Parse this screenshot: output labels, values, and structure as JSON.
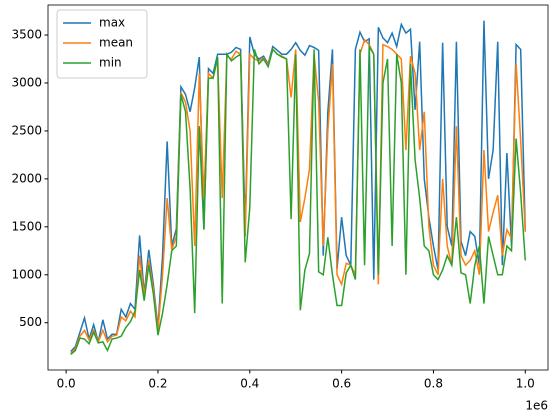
{
  "chart_data": {
    "type": "line",
    "x": [
      10000,
      20000,
      30000,
      40000,
      50000,
      60000,
      70000,
      80000,
      90000,
      100000,
      110000,
      120000,
      130000,
      140000,
      150000,
      160000,
      170000,
      180000,
      190000,
      200000,
      210000,
      220000,
      230000,
      240000,
      250000,
      260000,
      270000,
      280000,
      290000,
      300000,
      310000,
      320000,
      330000,
      340000,
      350000,
      360000,
      370000,
      380000,
      390000,
      400000,
      410000,
      420000,
      430000,
      440000,
      450000,
      460000,
      470000,
      480000,
      490000,
      500000,
      510000,
      520000,
      530000,
      540000,
      550000,
      560000,
      570000,
      580000,
      590000,
      600000,
      610000,
      620000,
      630000,
      640000,
      650000,
      660000,
      670000,
      680000,
      690000,
      700000,
      710000,
      720000,
      730000,
      740000,
      750000,
      760000,
      770000,
      780000,
      790000,
      800000,
      810000,
      820000,
      830000,
      840000,
      850000,
      860000,
      870000,
      880000,
      890000,
      900000,
      910000,
      920000,
      930000,
      940000,
      950000,
      960000,
      970000,
      980000,
      990000,
      1000000
    ],
    "series": [
      {
        "name": "max",
        "color": "#1f77b4",
        "values": [
          200,
          250,
          400,
          550,
          330,
          480,
          300,
          530,
          330,
          380,
          380,
          640,
          560,
          700,
          640,
          1410,
          800,
          1260,
          900,
          450,
          1200,
          2390,
          1300,
          1480,
          2960,
          2880,
          2700,
          2950,
          3270,
          1480,
          3150,
          3100,
          3300,
          3300,
          3300,
          3320,
          3370,
          3350,
          1500,
          3480,
          3300,
          3250,
          3280,
          3200,
          3380,
          3340,
          3300,
          3300,
          3350,
          3420,
          3340,
          3290,
          3390,
          3370,
          3340,
          1200,
          2700,
          3350,
          1060,
          1600,
          1200,
          1100,
          3350,
          3530,
          3430,
          3460,
          950,
          3580,
          3470,
          3420,
          3520,
          3380,
          3610,
          3520,
          3560,
          2720,
          3430,
          2000,
          1600,
          1300,
          1050,
          3420,
          1500,
          1300,
          3430,
          1350,
          1200,
          1450,
          1400,
          1100,
          3650,
          2000,
          2300,
          3430,
          1100,
          2270,
          1300,
          3400,
          3350,
          1450
        ]
      },
      {
        "name": "mean",
        "color": "#ff7f0e",
        "values": [
          180,
          230,
          360,
          420,
          320,
          420,
          300,
          420,
          300,
          360,
          370,
          560,
          520,
          620,
          560,
          1200,
          780,
          1150,
          850,
          420,
          1000,
          1800,
          1260,
          1400,
          2900,
          2800,
          2500,
          1300,
          3100,
          1800,
          3100,
          3050,
          3250,
          1800,
          3280,
          3250,
          3330,
          3300,
          1400,
          3300,
          3250,
          3230,
          3260,
          3190,
          3350,
          3300,
          3280,
          3250,
          2850,
          3350,
          1550,
          1800,
          2100,
          3300,
          2800,
          1300,
          2500,
          3200,
          1000,
          900,
          1120,
          1100,
          1000,
          3300,
          3450,
          3400,
          3300,
          900,
          3400,
          3380,
          3350,
          3300,
          3250,
          2300,
          3280,
          3100,
          2300,
          2700,
          1500,
          1100,
          1000,
          2000,
          1300,
          1100,
          2550,
          1200,
          1100,
          1150,
          1250,
          1000,
          2300,
          1450,
          1650,
          1830,
          1200,
          1470,
          1380,
          3200,
          2400,
          1450
        ]
      },
      {
        "name": "min",
        "color": "#2ca02c",
        "values": [
          170,
          210,
          340,
          330,
          280,
          400,
          290,
          300,
          210,
          330,
          340,
          360,
          450,
          510,
          620,
          1050,
          730,
          1100,
          800,
          370,
          600,
          900,
          1250,
          1300,
          2880,
          2700,
          1900,
          600,
          2550,
          1470,
          3050,
          3050,
          3270,
          700,
          3300,
          3230,
          3270,
          3300,
          1130,
          1700,
          3350,
          3200,
          3250,
          3170,
          3350,
          3300,
          3270,
          3250,
          1580,
          3300,
          630,
          1050,
          1220,
          3350,
          1030,
          1000,
          1390,
          1000,
          680,
          680,
          1020,
          1100,
          950,
          3350,
          1100,
          3380,
          3300,
          1000,
          3000,
          3250,
          1300,
          3300,
          3000,
          1000,
          3200,
          2200,
          1800,
          1300,
          1250,
          1000,
          950,
          1050,
          1200,
          1100,
          1600,
          1020,
          1000,
          700,
          1100,
          1300,
          700,
          1400,
          1200,
          1000,
          1000,
          1300,
          1250,
          2420,
          1850,
          1150
        ]
      }
    ],
    "xlim": [
      -39500,
      1049500
    ],
    "xticks": [
      {
        "value": 0,
        "label": "0.0"
      },
      {
        "value": 200000,
        "label": "0.2"
      },
      {
        "value": 400000,
        "label": "0.4"
      },
      {
        "value": 600000,
        "label": "0.6"
      },
      {
        "value": 800000,
        "label": "0.8"
      },
      {
        "value": 1000000,
        "label": "1.0"
      }
    ],
    "x_offset_label": "1e6",
    "ylim": [
      7,
      3813
    ],
    "yticks": [
      500,
      1000,
      1500,
      2000,
      2500,
      3000,
      3500
    ],
    "legend": "upper left"
  }
}
